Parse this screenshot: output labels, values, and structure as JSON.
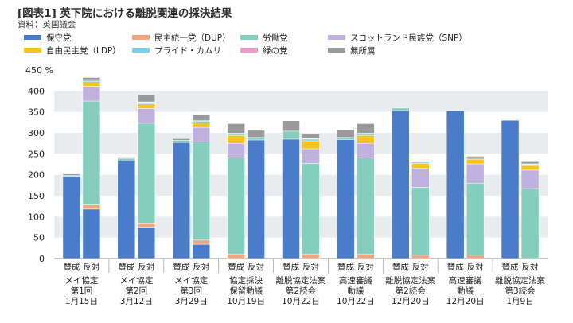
{
  "title": "[図表1] 英下院における離脱関連の採決結果",
  "source": "資料：英国議会",
  "chart_data": {
    "type": "bar",
    "stacked": true,
    "unit": "%",
    "ylim": [
      0,
      450
    ],
    "yticks": [
      0,
      50,
      100,
      150,
      200,
      250,
      300,
      350,
      400,
      450
    ],
    "bar_labels": {
      "for": "賛成",
      "against": "反対"
    },
    "legend": [
      {
        "key": "con",
        "name": "保守党",
        "color": "#4a7cc9"
      },
      {
        "key": "dup",
        "name": "民主統一党（DUP）",
        "color": "#f0a582"
      },
      {
        "key": "lab",
        "name": "労働党",
        "color": "#85cdbd"
      },
      {
        "key": "snp",
        "name": "スコットランド民族党（SNP）",
        "color": "#c0b0dd"
      },
      {
        "key": "ld",
        "name": "自由民主党（LDP）",
        "color": "#f3c41c"
      },
      {
        "key": "pc",
        "name": "プライド・カムリ",
        "color": "#7dcde8"
      },
      {
        "key": "grn",
        "name": "緑の党",
        "color": "#eb9ac4"
      },
      {
        "key": "ind",
        "name": "無所属",
        "color": "#9a9a9a"
      }
    ],
    "groups": [
      {
        "label": [
          "メイ協定",
          "第1回",
          "1月15日"
        ],
        "for": {
          "con": 196,
          "dup": 0,
          "lab": 3,
          "snp": 0,
          "ld": 0,
          "pc": 0,
          "grn": 0,
          "ind": 3
        },
        "against": {
          "con": 118,
          "dup": 10,
          "lab": 248,
          "snp": 35,
          "ld": 11,
          "pc": 4,
          "grn": 1,
          "ind": 5
        }
      },
      {
        "label": [
          "メイ協定",
          "第2回",
          "3月12日"
        ],
        "for": {
          "con": 235,
          "dup": 0,
          "lab": 3,
          "snp": 0,
          "ld": 0,
          "pc": 0,
          "grn": 0,
          "ind": 4
        },
        "against": {
          "con": 75,
          "dup": 10,
          "lab": 238,
          "snp": 35,
          "ld": 11,
          "pc": 4,
          "grn": 1,
          "ind": 17
        }
      },
      {
        "label": [
          "メイ協定",
          "第3回",
          "3月29日"
        ],
        "for": {
          "con": 277,
          "dup": 0,
          "lab": 5,
          "snp": 0,
          "ld": 0,
          "pc": 0,
          "grn": 0,
          "ind": 4
        },
        "against": {
          "con": 34,
          "dup": 10,
          "lab": 234,
          "snp": 35,
          "ld": 11,
          "pc": 4,
          "grn": 1,
          "ind": 15
        }
      },
      {
        "label": [
          "協定採決",
          "保留動議",
          "10月19日"
        ],
        "for": {
          "con": 0,
          "dup": 10,
          "lab": 230,
          "snp": 35,
          "ld": 19,
          "pc": 4,
          "grn": 1,
          "ind": 23
        },
        "against": {
          "con": 283,
          "dup": 0,
          "lab": 6,
          "snp": 0,
          "ld": 0,
          "pc": 0,
          "grn": 0,
          "ind": 17
        }
      },
      {
        "label": [
          "離脱協定法案",
          "第2読会",
          "10月22日"
        ],
        "for": {
          "con": 285,
          "dup": 0,
          "lab": 19,
          "snp": 0,
          "ld": 0,
          "pc": 0,
          "grn": 0,
          "ind": 25
        },
        "against": {
          "con": 0,
          "dup": 10,
          "lab": 217,
          "snp": 35,
          "ld": 19,
          "pc": 4,
          "grn": 1,
          "ind": 12
        }
      },
      {
        "label": [
          "高速審議",
          "動議",
          "10月22日"
        ],
        "for": {
          "con": 284,
          "dup": 0,
          "lab": 5,
          "snp": 0,
          "ld": 0,
          "pc": 0,
          "grn": 0,
          "ind": 19
        },
        "against": {
          "con": 0,
          "dup": 10,
          "lab": 230,
          "snp": 35,
          "ld": 19,
          "pc": 4,
          "grn": 1,
          "ind": 23
        }
      },
      {
        "label": [
          "離脱協定法案",
          "第2読会",
          "12月20日"
        ],
        "for": {
          "con": 353,
          "dup": 0,
          "lab": 6,
          "snp": 0,
          "ld": 0,
          "pc": 0,
          "grn": 0,
          "ind": 0
        },
        "against": {
          "con": 0,
          "dup": 8,
          "lab": 162,
          "snp": 46,
          "ld": 11,
          "pc": 3,
          "grn": 1,
          "ind": 3
        }
      },
      {
        "label": [
          "高速審議",
          "動議",
          "12月20日"
        ],
        "for": {
          "con": 353,
          "dup": 0,
          "lab": 0,
          "snp": 0,
          "ld": 0,
          "pc": 0,
          "grn": 0,
          "ind": 0
        },
        "against": {
          "con": 0,
          "dup": 8,
          "lab": 172,
          "snp": 46,
          "ld": 11,
          "pc": 3,
          "grn": 1,
          "ind": 3
        }
      },
      {
        "label": [
          "離脱協定法案",
          "第3読会",
          "1月9日"
        ],
        "for": {
          "con": 330,
          "dup": 0,
          "lab": 0,
          "snp": 0,
          "ld": 0,
          "pc": 0,
          "grn": 0,
          "ind": 0
        },
        "against": {
          "con": 0,
          "dup": 0,
          "lab": 167,
          "snp": 44,
          "ld": 11,
          "pc": 3,
          "grn": 1,
          "ind": 5
        }
      }
    ]
  }
}
